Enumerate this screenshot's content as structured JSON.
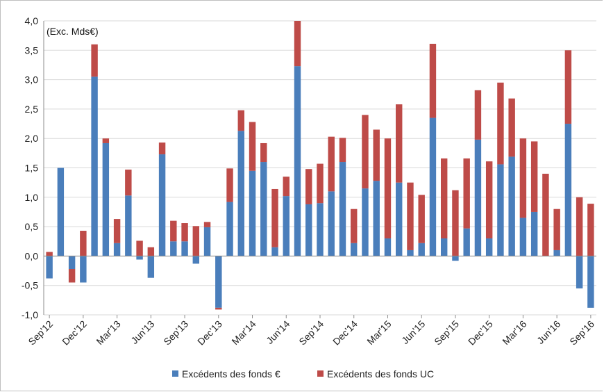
{
  "chart_data": {
    "type": "bar",
    "stacked": true,
    "unit_label": "(Exc. Mds€)",
    "ylim": [
      -1.0,
      4.0
    ],
    "y_ticks": [
      "-1,0",
      "-0,5",
      "0,0",
      "0,5",
      "1,0",
      "1,5",
      "2,0",
      "2,5",
      "3,0",
      "3,5",
      "4,0"
    ],
    "y_tick_values": [
      -1.0,
      -0.5,
      0.0,
      0.5,
      1.0,
      1.5,
      2.0,
      2.5,
      3.0,
      3.5,
      4.0
    ],
    "grid": "horizontal",
    "legend_position": "bottom",
    "x_tick_labels": [
      {
        "index": 0,
        "label": "Sep'12"
      },
      {
        "index": 3,
        "label": "Dec'12"
      },
      {
        "index": 6,
        "label": "Mar'13"
      },
      {
        "index": 9,
        "label": "Jun'13"
      },
      {
        "index": 12,
        "label": "Sep'13"
      },
      {
        "index": 15,
        "label": "Dec'13"
      },
      {
        "index": 18,
        "label": "Mar'14"
      },
      {
        "index": 21,
        "label": "Jun'14"
      },
      {
        "index": 24,
        "label": "Sep'14"
      },
      {
        "index": 27,
        "label": "Dec'14"
      },
      {
        "index": 30,
        "label": "Mar'15"
      },
      {
        "index": 33,
        "label": "Jun'15"
      },
      {
        "index": 36,
        "label": "Sep'15"
      },
      {
        "index": 39,
        "label": "Dec'15"
      },
      {
        "index": 42,
        "label": "Mar'16"
      },
      {
        "index": 45,
        "label": "Jun'16"
      },
      {
        "index": 48,
        "label": "Sep'16"
      }
    ],
    "series": [
      {
        "name": "Excédents des fonds €",
        "color": "#4a7ebb",
        "values": [
          -0.38,
          1.5,
          -0.22,
          -0.45,
          3.05,
          1.92,
          0.22,
          1.03,
          -0.06,
          -0.37,
          1.73,
          0.25,
          0.25,
          -0.13,
          0.49,
          -0.88,
          0.92,
          2.13,
          1.45,
          1.6,
          0.15,
          1.02,
          3.23,
          0.88,
          0.9,
          1.1,
          1.6,
          0.22,
          1.15,
          1.28,
          0.3,
          1.25,
          0.1,
          0.22,
          2.35,
          0.3,
          -0.08,
          0.47,
          1.98,
          0.3,
          1.56,
          1.69,
          0.65,
          0.75,
          0.0,
          0.1,
          2.25,
          -0.55,
          -0.88
        ]
      },
      {
        "name": "Excédents des fonds UC",
        "color": "#be4b48",
        "values": [
          0.07,
          0.0,
          -0.23,
          0.43,
          0.55,
          0.08,
          0.41,
          0.44,
          0.26,
          0.15,
          0.2,
          0.35,
          0.31,
          0.51,
          0.09,
          -0.03,
          0.57,
          0.35,
          0.83,
          0.32,
          0.99,
          0.33,
          0.77,
          0.6,
          0.67,
          0.93,
          0.41,
          0.58,
          1.25,
          0.87,
          1.7,
          1.33,
          1.15,
          0.82,
          1.26,
          1.36,
          1.12,
          1.19,
          0.84,
          1.31,
          1.39,
          0.99,
          1.35,
          1.2,
          1.4,
          0.7,
          1.25,
          1.0,
          0.89
        ]
      }
    ]
  }
}
